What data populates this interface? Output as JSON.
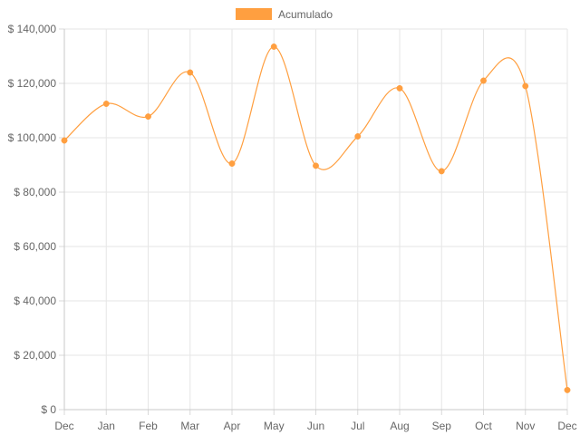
{
  "chart_data": {
    "type": "line",
    "categories": [
      "Dec",
      "Jan",
      "Feb",
      "Mar",
      "Apr",
      "May",
      "Jun",
      "Jul",
      "Aug",
      "Sep",
      "Oct",
      "Nov",
      "Dec"
    ],
    "series": [
      {
        "name": "Acumulado",
        "color": "#ff9f40",
        "values": [
          99000,
          112500,
          107800,
          124000,
          90500,
          133500,
          89700,
          100500,
          118200,
          87700,
          121000,
          119000,
          7200
        ]
      }
    ],
    "ylim": [
      0,
      140000
    ],
    "yticks": [
      "$ 0",
      "$ 20,000",
      "$ 40,000",
      "$ 60,000",
      "$ 80,000",
      "$ 100,000",
      "$ 120,000",
      "$ 140,000"
    ],
    "grid": true,
    "legend_position": "top-center"
  }
}
